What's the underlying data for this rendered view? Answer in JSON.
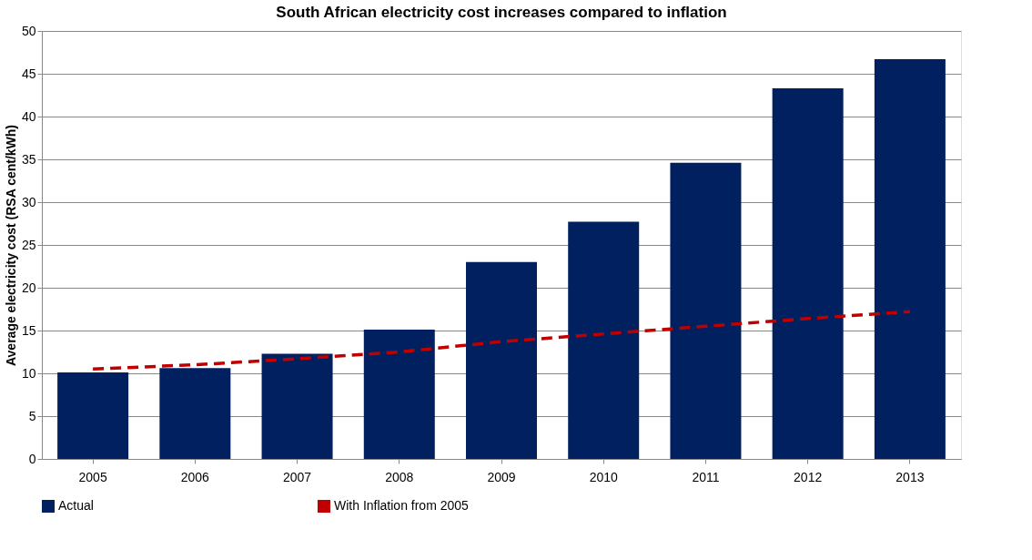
{
  "chart_data": {
    "type": "bar",
    "title": "South African electricity  cost increases compared to inflation",
    "ylabel": "Average electricity cost (RSA cent/kWh)",
    "categories": [
      "2005",
      "2006",
      "2007",
      "2008",
      "2009",
      "2010",
      "2011",
      "2012",
      "2013"
    ],
    "series": [
      {
        "name": "Actual",
        "color": "#002060",
        "values": [
          10.1,
          10.6,
          12.3,
          15.1,
          23.0,
          27.7,
          34.6,
          43.3,
          46.7
        ]
      },
      {
        "name": "With Inflation from 2005",
        "type": "line",
        "color": "#c00000",
        "line_style": "dashed",
        "values": [
          10.5,
          11.0,
          11.7,
          12.5,
          13.7,
          14.6,
          15.5,
          16.4,
          17.2
        ]
      }
    ],
    "ylim": [
      0,
      50
    ],
    "yticks": [
      0,
      5,
      10,
      15,
      20,
      25,
      30,
      35,
      40,
      45,
      50
    ],
    "grid": "y",
    "legend": "bottom"
  }
}
